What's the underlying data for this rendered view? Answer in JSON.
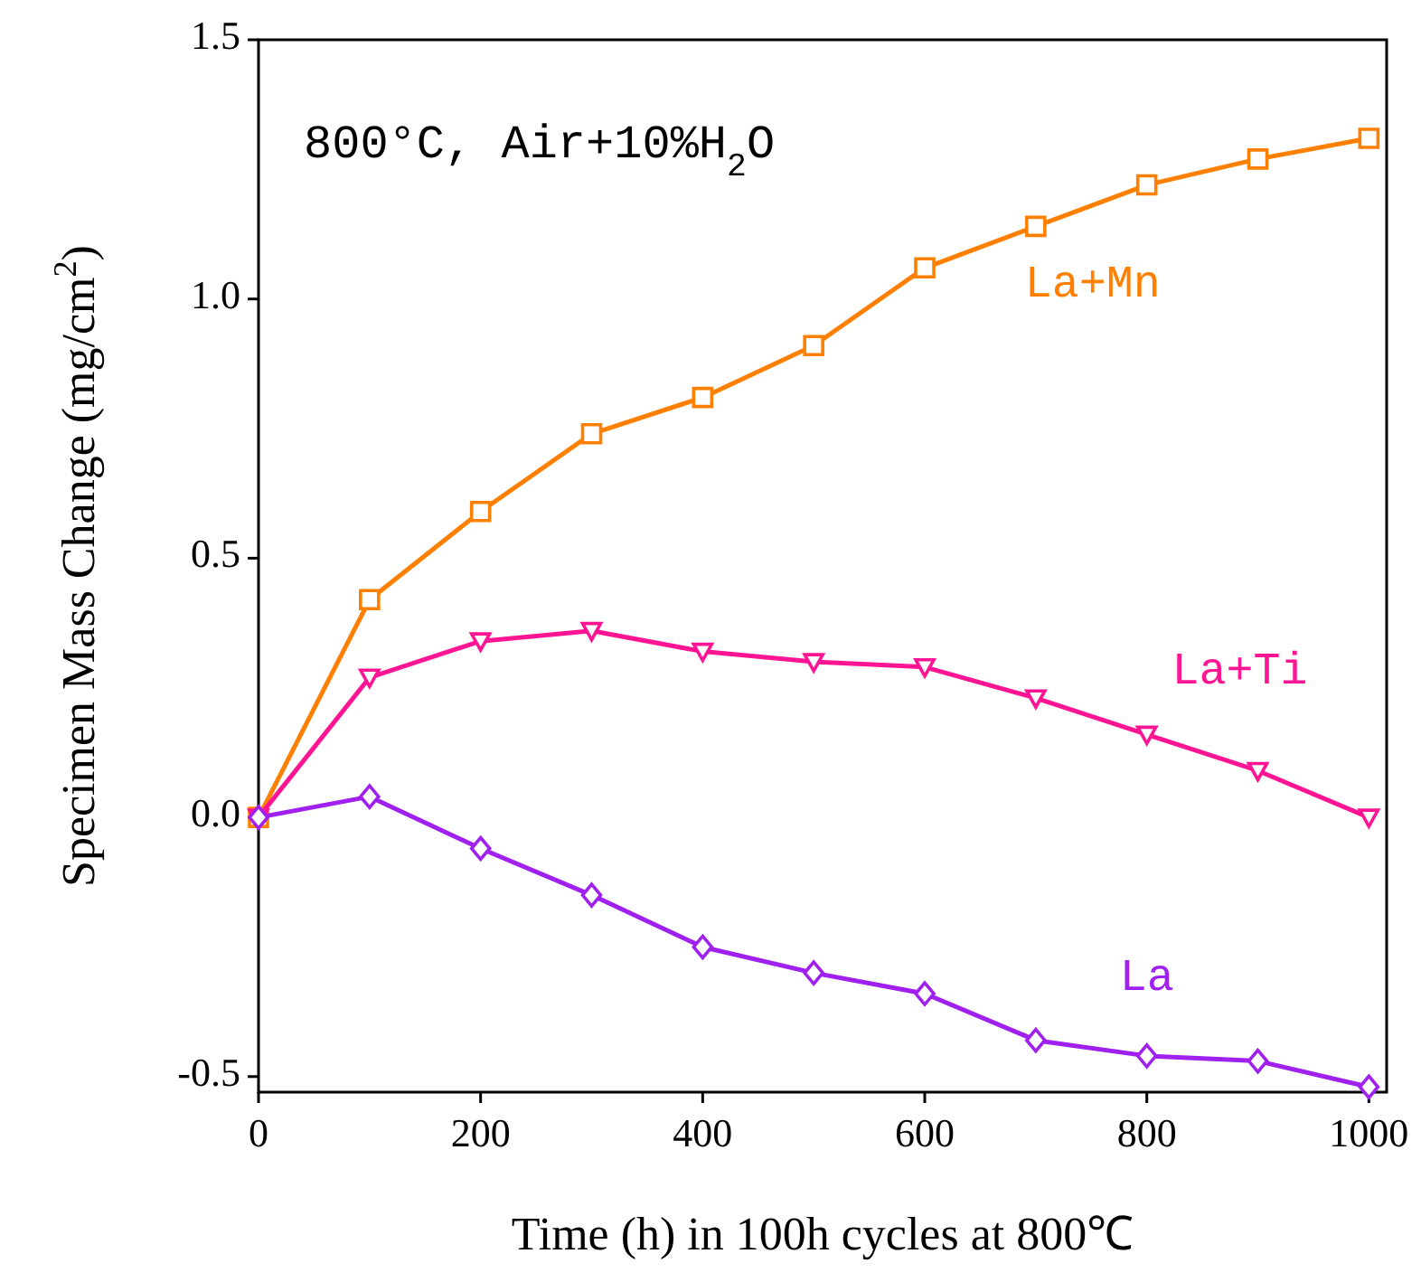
{
  "chart_data": {
    "type": "line",
    "xlabel": "Time (h) in 100h cycles at 800℃",
    "ylabel": "Specimen Mass Change (mg/cm$^{2}$)",
    "annotations": [
      "800°C, Air+10%H$_{2}$O"
    ],
    "x": [
      0,
      100,
      200,
      300,
      400,
      500,
      600,
      700,
      800,
      900,
      1000
    ],
    "series": [
      {
        "name": "La+Mn",
        "color": "#ff8000",
        "marker": "square",
        "values": [
          0,
          0.42,
          0.59,
          0.74,
          0.81,
          0.91,
          1.06,
          1.14,
          1.22,
          1.27,
          1.31
        ]
      },
      {
        "name": "La+Ti",
        "color": "#ff1493",
        "marker": "triangle",
        "values": [
          0,
          0.27,
          0.34,
          0.36,
          0.32,
          0.3,
          0.29,
          0.23,
          0.16,
          0.09,
          0
        ]
      },
      {
        "name": "La",
        "color": "#a020f0",
        "marker": "diamond",
        "values": [
          0,
          0.04,
          -0.06,
          -0.15,
          -0.25,
          -0.3,
          -0.34,
          -0.43,
          -0.46,
          -0.47,
          -0.52
        ]
      }
    ],
    "xlim": [
      0,
      1016
    ],
    "ylim": [
      -0.53,
      1.5
    ],
    "xticks": [
      0,
      200,
      400,
      600,
      800,
      1000
    ],
    "yticks": [
      {
        "value": -0.5,
        "label": "-0.5"
      },
      {
        "value": 0,
        "label": "0.0"
      },
      {
        "value": 0.5,
        "label": "0.5"
      },
      {
        "value": 1,
        "label": "1.0"
      },
      {
        "value": 1.5,
        "label": "1.5"
      }
    ],
    "grid": false,
    "line_style": "solid"
  }
}
